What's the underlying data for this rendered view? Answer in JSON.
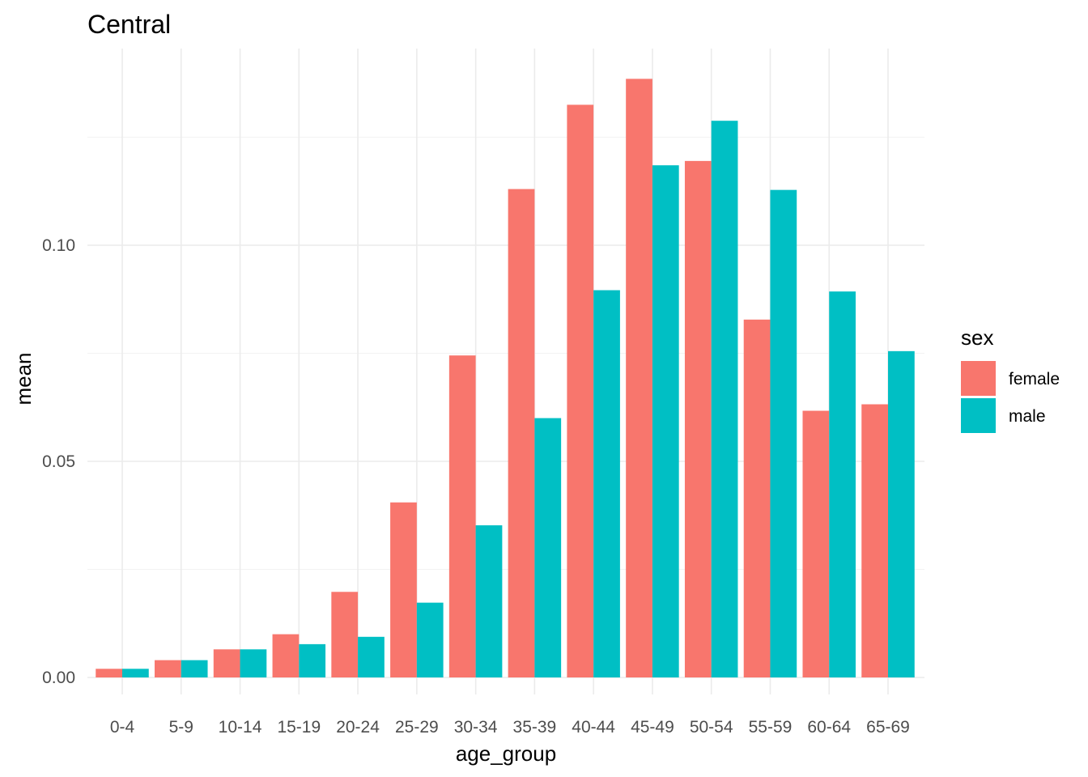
{
  "chart_data": {
    "type": "bar",
    "title": "Central",
    "xlabel": "age_group",
    "ylabel": "mean",
    "categories": [
      "0-4",
      "5-9",
      "10-14",
      "15-19",
      "20-24",
      "25-29",
      "30-34",
      "35-39",
      "40-44",
      "45-49",
      "50-54",
      "55-59",
      "60-64",
      "65-69"
    ],
    "series": [
      {
        "name": "female",
        "color": "#F8766D",
        "values": [
          0.002,
          0.004,
          0.0065,
          0.01,
          0.0198,
          0.0405,
          0.0745,
          0.113,
          0.1325,
          0.1385,
          0.1195,
          0.0828,
          0.0617,
          0.0632
        ]
      },
      {
        "name": "male",
        "color": "#00BFC4",
        "values": [
          0.002,
          0.004,
          0.0065,
          0.0077,
          0.0094,
          0.0173,
          0.0352,
          0.06,
          0.0896,
          0.1185,
          0.1288,
          0.1128,
          0.0893,
          0.0755
        ]
      }
    ],
    "ylim": [
      0,
      0.14
    ],
    "yticks": [
      "0.00",
      "0.05",
      "0.10"
    ],
    "ytick_values": [
      0,
      0.05,
      0.1
    ],
    "legend": {
      "title": "sex",
      "position": "right"
    },
    "grid": true
  }
}
